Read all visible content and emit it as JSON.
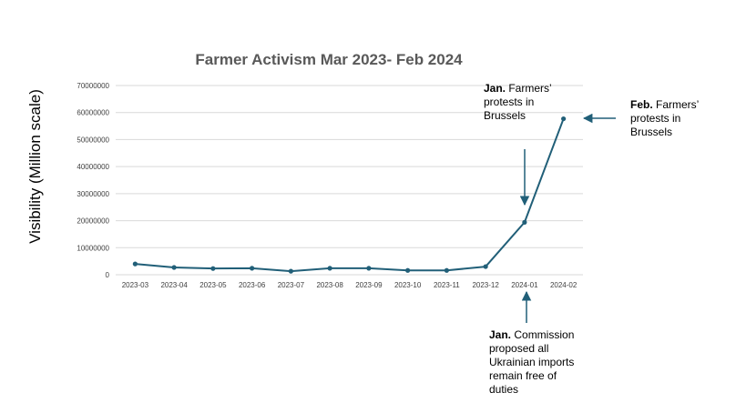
{
  "chart_data": {
    "type": "line",
    "title": "Farmer Activism Mar 2023- Feb 2024",
    "ylabel": "Visibility (Million  scale)",
    "xlabel": "",
    "categories": [
      "2023-03",
      "2023-04",
      "2023-05",
      "2023-06",
      "2023-07",
      "2023-08",
      "2023-09",
      "2023-10",
      "2023-11",
      "2023-12",
      "2024-01",
      "2024-02"
    ],
    "values": [
      4000000,
      2700000,
      2300000,
      2400000,
      1300000,
      2400000,
      2400000,
      1600000,
      1600000,
      3000000,
      19400000,
      57700000
    ],
    "ylim": [
      0,
      70000000
    ],
    "yticks": [
      "0",
      "10000000",
      "20000000",
      "30000000",
      "40000000",
      "50000000",
      "60000000",
      "70000000"
    ],
    "grid": true,
    "legend": "none",
    "colors": {
      "line": "#215f78",
      "arrow": "#215f78"
    }
  },
  "annotations": {
    "jan_protests": {
      "bold": "Jan.",
      "text": [
        " Farmers’",
        "protests in",
        "Brussels"
      ]
    },
    "feb_protests": {
      "bold": "Feb.",
      "text": [
        " Farmers’",
        "protests in",
        "Brussels"
      ]
    },
    "jan_commission": {
      "bold": "Jan.",
      "text": [
        " Commission",
        "proposed  all",
        "Ukrainian imports",
        "remain free of",
        "duties"
      ]
    }
  }
}
